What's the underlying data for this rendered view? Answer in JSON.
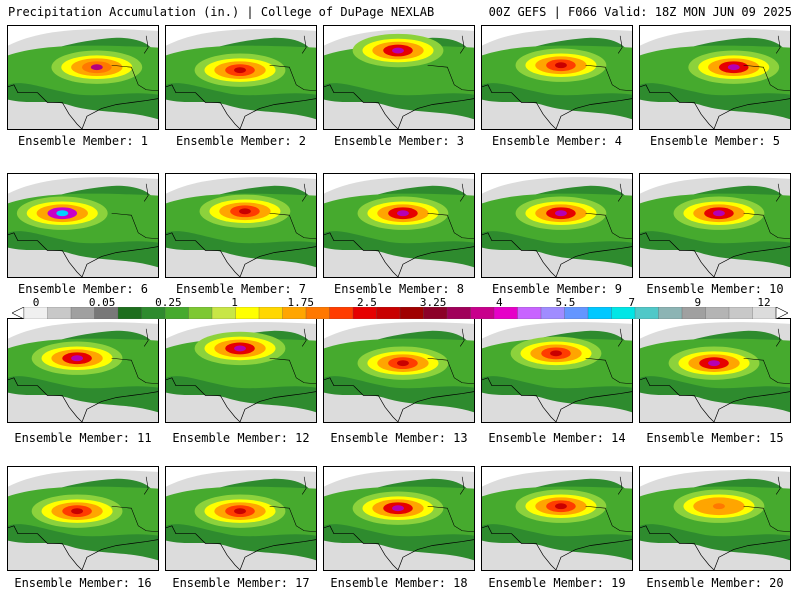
{
  "header": {
    "left": "Precipitation Accumulation (in.) | College of DuPage NEXLAB",
    "right": "00Z GEFS | F066 Valid: 18Z MON JUN 09 2025"
  },
  "colorbar": {
    "labels": [
      "0",
      "0.05",
      "0.25",
      "1",
      "1.75",
      "2.5",
      "3.25",
      "4",
      "5.5",
      "7",
      "9",
      "12"
    ],
    "colors": [
      "#f0f0f0",
      "#c8c8c8",
      "#a0a0a0",
      "#787878",
      "#1e6e1e",
      "#2e8b2e",
      "#46aa2e",
      "#7dc832",
      "#c8e646",
      "#ffff00",
      "#ffd700",
      "#ffa500",
      "#ff7800",
      "#ff3c00",
      "#e60000",
      "#c80000",
      "#a00000",
      "#8c0028",
      "#a0005a",
      "#c8008c",
      "#e600c8",
      "#c864ff",
      "#a08cff",
      "#6496ff",
      "#00c8ff",
      "#00e6e6",
      "#50c8c8",
      "#8cb4b4",
      "#a0a0a0",
      "#b4b4b4",
      "#c8c8c8",
      "#dcdcdc"
    ]
  },
  "members": [
    {
      "label": "Ensemble Member: 1",
      "max": "orange-magenta",
      "core": [
        90,
        42
      ]
    },
    {
      "label": "Ensemble Member: 2",
      "max": "red",
      "core": [
        75,
        45
      ]
    },
    {
      "label": "Ensemble Member: 3",
      "max": "magenta",
      "core": [
        75,
        25
      ]
    },
    {
      "label": "Ensemble Member: 4",
      "max": "red",
      "core": [
        80,
        40
      ]
    },
    {
      "label": "Ensemble Member: 5",
      "max": "magenta",
      "core": [
        95,
        42
      ]
    },
    {
      "label": "Ensemble Member: 6",
      "max": "cyan",
      "core": [
        55,
        40
      ]
    },
    {
      "label": "Ensemble Member: 7",
      "max": "red",
      "core": [
        80,
        38
      ]
    },
    {
      "label": "Ensemble Member: 8",
      "max": "magenta",
      "core": [
        80,
        40
      ]
    },
    {
      "label": "Ensemble Member: 9",
      "max": "magenta",
      "core": [
        80,
        40
      ]
    },
    {
      "label": "Ensemble Member: 10",
      "max": "magenta",
      "core": [
        80,
        40
      ]
    },
    {
      "label": "Ensemble Member: 11",
      "max": "magenta",
      "core": [
        70,
        40
      ]
    },
    {
      "label": "Ensemble Member: 12",
      "max": "magenta",
      "core": [
        75,
        30
      ]
    },
    {
      "label": "Ensemble Member: 13",
      "max": "red",
      "core": [
        80,
        45
      ]
    },
    {
      "label": "Ensemble Member: 14",
      "max": "red",
      "core": [
        75,
        35
      ]
    },
    {
      "label": "Ensemble Member: 15",
      "max": "magenta",
      "core": [
        75,
        45
      ]
    },
    {
      "label": "Ensemble Member: 16",
      "max": "red",
      "core": [
        70,
        45
      ]
    },
    {
      "label": "Ensemble Member: 17",
      "max": "red",
      "core": [
        75,
        45
      ]
    },
    {
      "label": "Ensemble Member: 18",
      "max": "magenta",
      "core": [
        75,
        42
      ]
    },
    {
      "label": "Ensemble Member: 19",
      "max": "red",
      "core": [
        80,
        40
      ]
    },
    {
      "label": "Ensemble Member: 20",
      "max": "orange",
      "core": [
        80,
        40
      ]
    }
  ]
}
